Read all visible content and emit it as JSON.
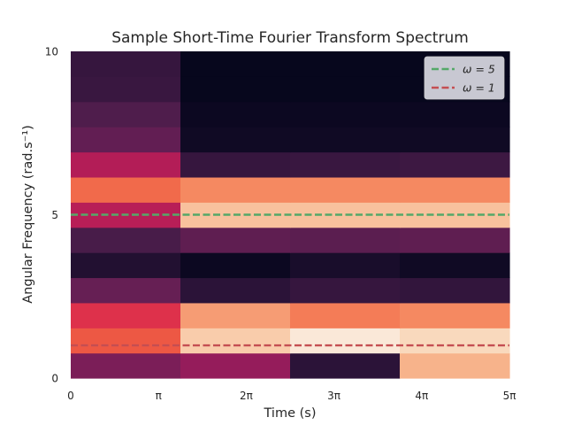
{
  "chart_data": {
    "type": "heatmap",
    "title": "Sample Short-Time Fourier Transform Spectrum",
    "xlabel": "Time (s)",
    "ylabel": "Angular Frequency (rad.s⁻¹)",
    "xlim": [
      0,
      15.708
    ],
    "ylim": [
      0,
      10
    ],
    "x_ticks": [
      {
        "value": 0,
        "label": "0"
      },
      {
        "value": 3.1416,
        "label": "π"
      },
      {
        "value": 6.2832,
        "label": "2π"
      },
      {
        "value": 9.4248,
        "label": "3π"
      },
      {
        "value": 12.5664,
        "label": "4π"
      },
      {
        "value": 15.708,
        "label": "5π"
      }
    ],
    "y_ticks": [
      {
        "value": 0,
        "label": "0"
      },
      {
        "value": 5,
        "label": "5"
      },
      {
        "value": 10,
        "label": "10"
      }
    ],
    "grid": false,
    "legend_position": "top-right",
    "time_bins": [
      0,
      3.927,
      7.854,
      11.781,
      15.708
    ],
    "freq_bins": [
      0,
      0.769,
      1.538,
      2.308,
      3.077,
      3.846,
      4.615,
      5.385,
      6.154,
      6.923,
      7.692,
      8.462,
      9.231,
      10
    ],
    "color_scale": {
      "stops": [
        "#03051a",
        "#2b1338",
        "#4c1d4b",
        "#6f1f57",
        "#971c5b",
        "#be1e56",
        "#e0324a",
        "#f06043",
        "#f58860",
        "#f7b28a",
        "#f9d3b4",
        "#faebdd"
      ],
      "range": [
        0,
        1
      ]
    },
    "values": [
      [
        0.3,
        0.36,
        0.09,
        0.82
      ],
      [
        0.62,
        0.89,
        0.99,
        0.93
      ],
      [
        0.54,
        0.77,
        0.7,
        0.73
      ],
      [
        0.25,
        0.09,
        0.12,
        0.11
      ],
      [
        0.07,
        0.02,
        0.05,
        0.03
      ],
      [
        0.17,
        0.23,
        0.22,
        0.23
      ],
      [
        0.44,
        0.86,
        0.86,
        0.86
      ],
      [
        0.66,
        0.73,
        0.73,
        0.73
      ],
      [
        0.43,
        0.12,
        0.13,
        0.14
      ],
      [
        0.24,
        0.03,
        0.03,
        0.03
      ],
      [
        0.19,
        0.02,
        0.02,
        0.02
      ],
      [
        0.13,
        0.01,
        0.01,
        0.01
      ],
      [
        0.12,
        0.01,
        0.01,
        0.01
      ]
    ],
    "lines": [
      {
        "name": "ω = 5",
        "y": 5,
        "color": "#55a868",
        "style": "dashed"
      },
      {
        "name": "ω = 1",
        "y": 1,
        "color": "#c44e52",
        "style": "dashed"
      }
    ]
  }
}
